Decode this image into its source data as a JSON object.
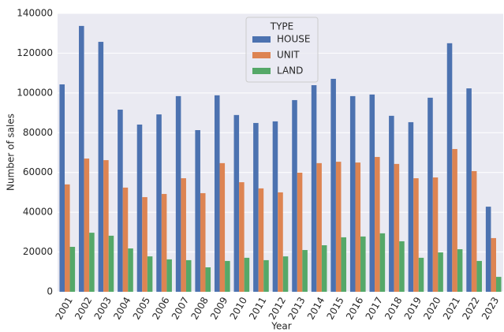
{
  "chart_data": {
    "type": "bar",
    "x_label": "Year",
    "y_label": "Number of sales",
    "categories": [
      "2001",
      "2002",
      "2003",
      "2004",
      "2005",
      "2006",
      "2007",
      "2008",
      "2009",
      "2010",
      "2011",
      "2012",
      "2013",
      "2014",
      "2015",
      "2016",
      "2017",
      "2018",
      "2019",
      "2020",
      "2021",
      "2022",
      "2023"
    ],
    "series": [
      {
        "name": "HOUSE",
        "color": "#4c72b0",
        "values": [
          104300,
          133700,
          125700,
          91600,
          84100,
          89200,
          98400,
          81300,
          98800,
          88900,
          84900,
          85700,
          96400,
          103900,
          107100,
          98400,
          99200,
          88500,
          85300,
          97600,
          125000,
          102300,
          42800
        ]
      },
      {
        "name": "UNIT",
        "color": "#dd8452",
        "values": [
          54000,
          67000,
          66200,
          52400,
          47600,
          49200,
          57100,
          49600,
          64700,
          55100,
          52000,
          50000,
          59900,
          64700,
          65400,
          65000,
          67800,
          64300,
          57100,
          57500,
          71800,
          60700,
          27000
        ]
      },
      {
        "name": "LAND",
        "color": "#55a868",
        "values": [
          22600,
          29700,
          28200,
          21800,
          17800,
          16300,
          15900,
          12300,
          15500,
          17100,
          15900,
          17800,
          21000,
          23400,
          27400,
          27800,
          29400,
          25400,
          17100,
          19800,
          21400,
          15500,
          7500
        ]
      }
    ],
    "legend_title": "TYPE",
    "legend": "upper center",
    "ylim": [
      0,
      140000
    ],
    "yticks": [
      0,
      20000,
      40000,
      60000,
      80000,
      100000,
      120000,
      140000
    ],
    "grid": true
  }
}
